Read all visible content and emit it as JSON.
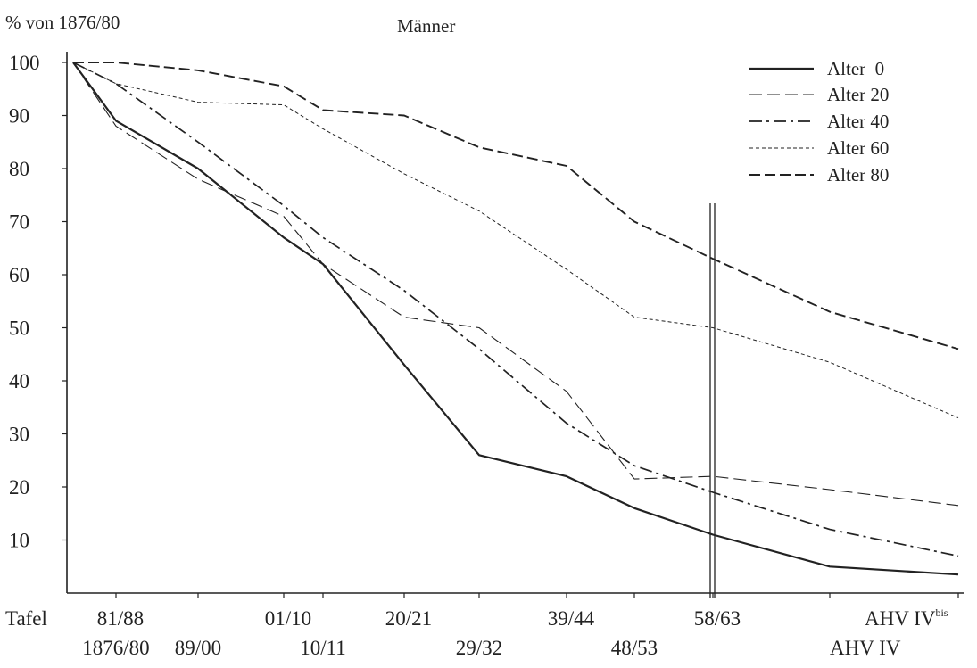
{
  "chart_data": {
    "type": "line",
    "title": "Männer",
    "ylabel": "% von 1876/80",
    "xlabel": "Tafel",
    "ylim": [
      0,
      100
    ],
    "yticks": [
      10,
      20,
      30,
      40,
      50,
      60,
      70,
      80,
      90,
      100
    ],
    "x": [
      "1876/80",
      "81/88",
      "89/00",
      "01/10",
      "10/11",
      "20/21",
      "29/32",
      "39/44",
      "48/53",
      "58/63",
      "AHV IV",
      "AHV IVbis"
    ],
    "x_label_rows": {
      "upper": [
        "81/88",
        "01/10",
        "20/21",
        "39/44",
        "58/63",
        "AHV IV"
      ],
      "lower": [
        "1876/80",
        "89/00",
        "10/11",
        "29/32",
        "48/53",
        "AHV IV"
      ]
    },
    "ahv_superscript": "bis",
    "grid": false,
    "legend": {
      "placement": "top-right"
    },
    "annotations": [
      {
        "type": "double-vertical-line",
        "between": [
          "48/53",
          "58/63"
        ]
      }
    ],
    "series": [
      {
        "name": "Alter  0",
        "dash": "solid",
        "values": [
          100,
          89,
          80,
          67,
          62,
          43,
          26,
          22,
          16,
          11,
          5,
          3.5
        ]
      },
      {
        "name": "Alter 20",
        "dash": "dashed",
        "values": [
          100,
          88,
          78,
          71,
          62,
          52,
          50,
          38,
          21.5,
          22,
          19.5,
          16.5
        ]
      },
      {
        "name": "Alter 40",
        "dash": "dashdot",
        "values": [
          100,
          96,
          85,
          73,
          67,
          57,
          46,
          32,
          24,
          19,
          12,
          7
        ]
      },
      {
        "name": "Alter 60",
        "dash": "dotted",
        "values": [
          100,
          96,
          92.5,
          92,
          87.5,
          79,
          72,
          61,
          52,
          50,
          43.5,
          33
        ]
      },
      {
        "name": "Alter 80",
        "dash": "longdash",
        "values": [
          100,
          100,
          98.5,
          95.5,
          91,
          90,
          84,
          80.5,
          70,
          63,
          53,
          46
        ]
      }
    ]
  }
}
